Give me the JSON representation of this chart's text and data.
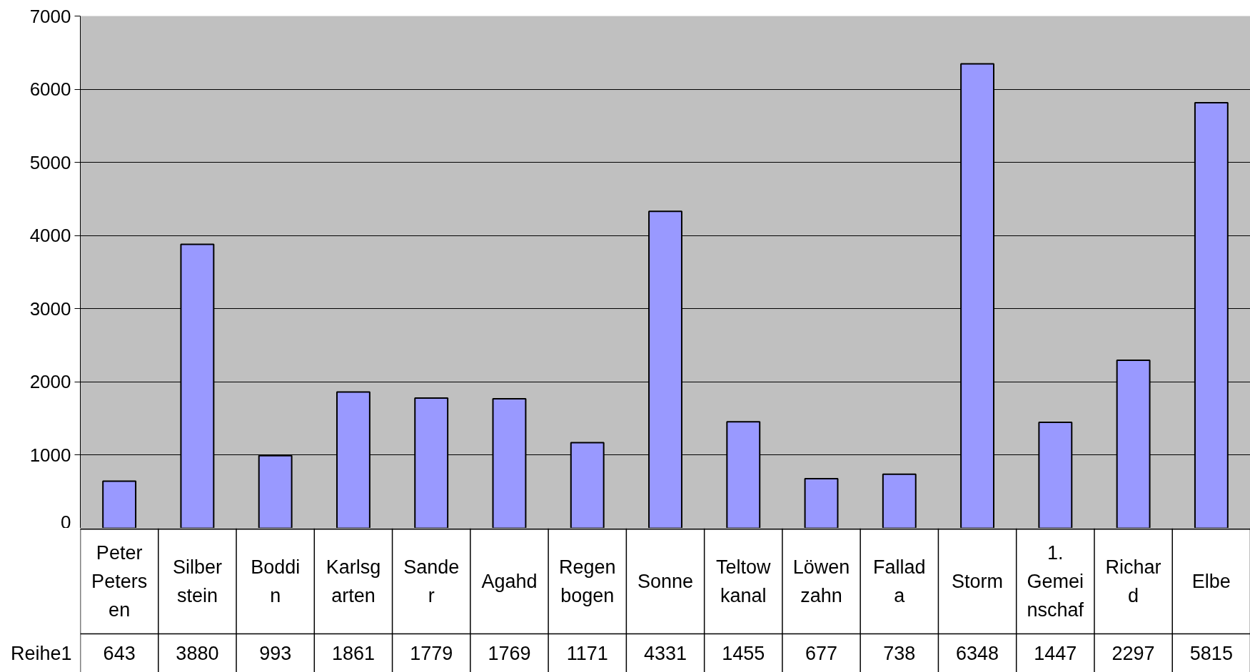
{
  "chart_data": {
    "type": "bar",
    "categories": [
      "Peter Petersen",
      "Silberstein",
      "Boddin",
      "Karlsgarten",
      "Sander",
      "Agahd",
      "Regenbogen",
      "Sonne",
      "Teltowkanal",
      "Löwenzahn",
      "Fallada",
      "Storm",
      "1. Gemeinschaf",
      "Richard",
      "Elbe"
    ],
    "series": [
      {
        "name": "Reihe1",
        "color": "#9999ff",
        "values": [
          643,
          3880,
          993,
          1861,
          1779,
          1769,
          1171,
          4331,
          1455,
          677,
          738,
          6348,
          1447,
          2297,
          5815
        ]
      }
    ],
    "ylim": [
      0,
      7000
    ],
    "yticks": [
      0,
      1000,
      2000,
      3000,
      4000,
      5000,
      6000,
      7000
    ],
    "grid": "y",
    "data_labels": true
  }
}
